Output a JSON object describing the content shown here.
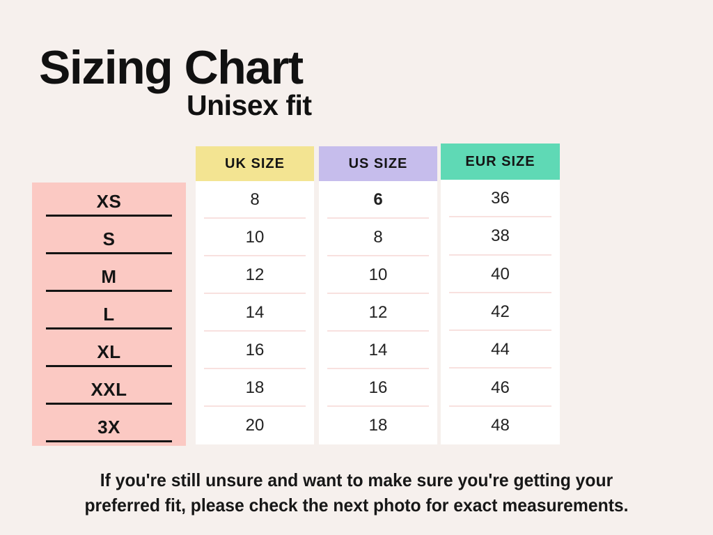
{
  "header": {
    "title": "Sizing Chart",
    "subtitle": "Unisex fit"
  },
  "chart_data": {
    "type": "table",
    "title": "Sizing Chart",
    "subtitle": "Unisex fit",
    "row_labels": [
      "XS",
      "S",
      "M",
      "L",
      "XL",
      "XXL",
      "3X"
    ],
    "column_headers": [
      "UK SIZE",
      "US SIZE",
      "EUR SIZE"
    ],
    "series": [
      {
        "name": "UK SIZE",
        "values": [
          "8",
          "10",
          "12",
          "14",
          "16",
          "18",
          "20"
        ]
      },
      {
        "name": "US SIZE",
        "values": [
          "6",
          "8",
          "10",
          "12",
          "14",
          "16",
          "18"
        ]
      },
      {
        "name": "EUR SIZE",
        "values": [
          "36",
          "38",
          "40",
          "42",
          "44",
          "46",
          "48"
        ]
      }
    ],
    "rows": [
      [
        "XS",
        "8",
        "6",
        "36"
      ],
      [
        "S",
        "10",
        "8",
        "38"
      ],
      [
        "M",
        "12",
        "10",
        "40"
      ],
      [
        "L",
        "14",
        "12",
        "42"
      ],
      [
        "XL",
        "16",
        "14",
        "44"
      ],
      [
        "XXL",
        "18",
        "16",
        "46"
      ],
      [
        "3X",
        "20",
        "18",
        "48"
      ]
    ]
  },
  "footer": {
    "line1": "If you're still unsure and want to make sure you're getting your",
    "line2": "preferred fit, please check the next photo for exact measurements."
  },
  "colors": {
    "background": "#F6F0ED",
    "size_panel_pink": "#FBC9C3",
    "uk_header_yellow": "#F3E492",
    "us_header_lavender": "#C6BDEC",
    "eur_header_teal": "#5FD9B5",
    "column_background": "#FFFFFF",
    "divider_pink": "#F8E1DF",
    "text_black": "#141414"
  }
}
